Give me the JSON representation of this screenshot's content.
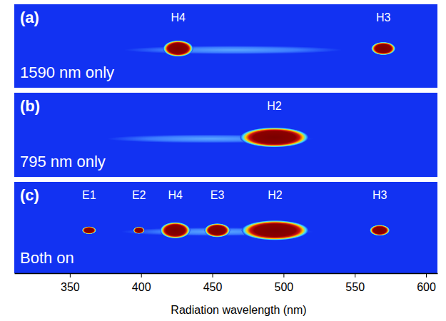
{
  "chart_data": {
    "type": "spectrum",
    "x_label": "Radiation wavelength (nm)",
    "xlim": [
      311,
      608
    ],
    "xticks": [
      350,
      400,
      450,
      500,
      550,
      600
    ],
    "panels": [
      {
        "label": "(a)",
        "caption": "1590 nm only",
        "continuum": [
          388,
          541
        ],
        "peaks": [
          {
            "name": "H4",
            "start": 417,
            "end": 435
          },
          {
            "name": "H3",
            "start": 563,
            "end": 577
          }
        ]
      },
      {
        "label": "(b)",
        "caption": "795 nm only",
        "continuum": [
          376,
          521
        ],
        "peaks": [
          {
            "name": "H2",
            "start": 471,
            "end": 516
          }
        ]
      },
      {
        "label": "(c)",
        "caption": "Both on",
        "continuum": [
          386,
          521
        ],
        "peaks": [
          {
            "name": "E1",
            "start": 360,
            "end": 367
          },
          {
            "name": "E2",
            "start": 396,
            "end": 401
          },
          {
            "name": "H4",
            "start": 415,
            "end": 433
          },
          {
            "name": "E3",
            "start": 446,
            "end": 461
          },
          {
            "name": "H2",
            "start": 472,
            "end": 516
          },
          {
            "name": "H3",
            "start": 562,
            "end": 573
          }
        ]
      }
    ]
  }
}
